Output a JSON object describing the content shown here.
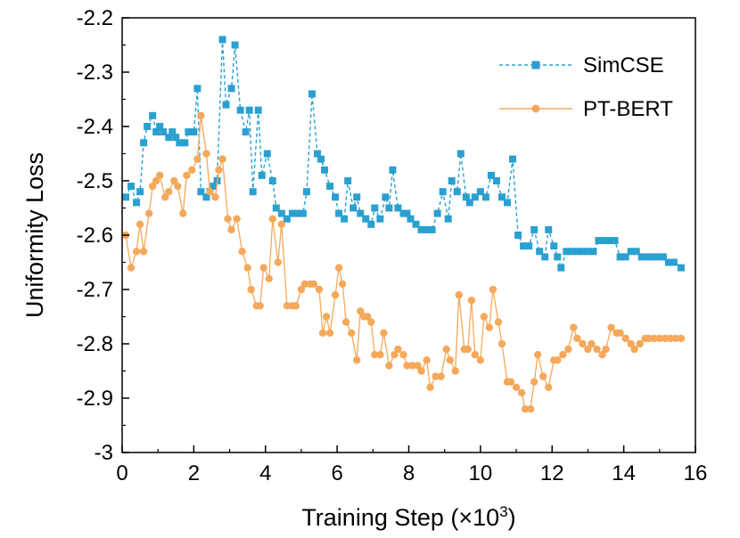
{
  "chart_data": {
    "type": "line",
    "title": "",
    "xlabel": "Training Step (×10",
    "xlabel_sup": "3",
    "xlabel_close": ")",
    "ylabel": "Uniformity Loss",
    "xlim": [
      0,
      16
    ],
    "ylim": [
      -3.0,
      -2.2
    ],
    "xticks": [
      0,
      2,
      4,
      6,
      8,
      10,
      12,
      14,
      16
    ],
    "xtick_labels": [
      "0",
      "2",
      "4",
      "6",
      "8",
      "10",
      "12",
      "14",
      "16"
    ],
    "yticks": [
      -3.0,
      -2.9,
      -2.8,
      -2.7,
      -2.6,
      -2.5,
      -2.4,
      -2.3,
      -2.2
    ],
    "ytick_labels": [
      "-3",
      "-2.9",
      "-2.8",
      "-2.7",
      "-2.6",
      "-2.5",
      "-2.4",
      "-2.3",
      "-2.2"
    ],
    "grid": false,
    "legend_position": "top-right",
    "series": [
      {
        "name": "SimCSE",
        "color": "#2aa0d0",
        "marker": "square",
        "line_style": "dashed",
        "points": [
          [
            0.1,
            -2.53
          ],
          [
            0.25,
            -2.51
          ],
          [
            0.4,
            -2.54
          ],
          [
            0.5,
            -2.52
          ],
          [
            0.6,
            -2.43
          ],
          [
            0.7,
            -2.4
          ],
          [
            0.85,
            -2.38
          ],
          [
            0.95,
            -2.41
          ],
          [
            1.05,
            -2.4
          ],
          [
            1.15,
            -2.41
          ],
          [
            1.3,
            -2.42
          ],
          [
            1.4,
            -2.41
          ],
          [
            1.5,
            -2.42
          ],
          [
            1.6,
            -2.43
          ],
          [
            1.75,
            -2.43
          ],
          [
            1.85,
            -2.41
          ],
          [
            2.0,
            -2.41
          ],
          [
            2.1,
            -2.33
          ],
          [
            2.2,
            -2.52
          ],
          [
            2.35,
            -2.53
          ],
          [
            2.45,
            -2.52
          ],
          [
            2.55,
            -2.51
          ],
          [
            2.65,
            -2.5
          ],
          [
            2.8,
            -2.24
          ],
          [
            2.9,
            -2.36
          ],
          [
            3.05,
            -2.33
          ],
          [
            3.15,
            -2.25
          ],
          [
            3.3,
            -2.37
          ],
          [
            3.45,
            -2.41
          ],
          [
            3.55,
            -2.37
          ],
          [
            3.65,
            -2.52
          ],
          [
            3.8,
            -2.37
          ],
          [
            3.9,
            -2.49
          ],
          [
            4.05,
            -2.45
          ],
          [
            4.2,
            -2.5
          ],
          [
            4.3,
            -2.55
          ],
          [
            4.45,
            -2.56
          ],
          [
            4.6,
            -2.57
          ],
          [
            4.75,
            -2.56
          ],
          [
            4.9,
            -2.56
          ],
          [
            5.05,
            -2.56
          ],
          [
            5.15,
            -2.52
          ],
          [
            5.3,
            -2.34
          ],
          [
            5.45,
            -2.45
          ],
          [
            5.55,
            -2.46
          ],
          [
            5.65,
            -2.48
          ],
          [
            5.8,
            -2.51
          ],
          [
            5.95,
            -2.53
          ],
          [
            6.05,
            -2.56
          ],
          [
            6.2,
            -2.57
          ],
          [
            6.3,
            -2.5
          ],
          [
            6.45,
            -2.55
          ],
          [
            6.55,
            -2.53
          ],
          [
            6.65,
            -2.56
          ],
          [
            6.8,
            -2.57
          ],
          [
            6.95,
            -2.58
          ],
          [
            7.05,
            -2.55
          ],
          [
            7.2,
            -2.57
          ],
          [
            7.35,
            -2.53
          ],
          [
            7.45,
            -2.55
          ],
          [
            7.55,
            -2.48
          ],
          [
            7.7,
            -2.55
          ],
          [
            7.85,
            -2.56
          ],
          [
            7.95,
            -2.56
          ],
          [
            8.05,
            -2.57
          ],
          [
            8.2,
            -2.58
          ],
          [
            8.35,
            -2.59
          ],
          [
            8.5,
            -2.59
          ],
          [
            8.65,
            -2.59
          ],
          [
            8.8,
            -2.56
          ],
          [
            8.95,
            -2.52
          ],
          [
            9.1,
            -2.57
          ],
          [
            9.2,
            -2.5
          ],
          [
            9.35,
            -2.52
          ],
          [
            9.45,
            -2.45
          ],
          [
            9.6,
            -2.53
          ],
          [
            9.7,
            -2.54
          ],
          [
            9.85,
            -2.53
          ],
          [
            10.0,
            -2.52
          ],
          [
            10.15,
            -2.53
          ],
          [
            10.3,
            -2.49
          ],
          [
            10.45,
            -2.5
          ],
          [
            10.6,
            -2.53
          ],
          [
            10.75,
            -2.54
          ],
          [
            10.9,
            -2.46
          ],
          [
            11.05,
            -2.6
          ],
          [
            11.2,
            -2.62
          ],
          [
            11.35,
            -2.62
          ],
          [
            11.5,
            -2.59
          ],
          [
            11.65,
            -2.63
          ],
          [
            11.8,
            -2.64
          ],
          [
            11.9,
            -2.59
          ],
          [
            12.05,
            -2.62
          ],
          [
            12.15,
            -2.64
          ],
          [
            12.25,
            -2.66
          ],
          [
            12.4,
            -2.63
          ],
          [
            12.55,
            -2.63
          ],
          [
            12.7,
            -2.63
          ],
          [
            12.85,
            -2.63
          ],
          [
            13.0,
            -2.63
          ],
          [
            13.15,
            -2.63
          ],
          [
            13.3,
            -2.61
          ],
          [
            13.45,
            -2.61
          ],
          [
            13.6,
            -2.61
          ],
          [
            13.75,
            -2.61
          ],
          [
            13.9,
            -2.64
          ],
          [
            14.05,
            -2.64
          ],
          [
            14.2,
            -2.63
          ],
          [
            14.35,
            -2.63
          ],
          [
            14.5,
            -2.64
          ],
          [
            14.65,
            -2.64
          ],
          [
            14.8,
            -2.64
          ],
          [
            14.95,
            -2.64
          ],
          [
            15.1,
            -2.64
          ],
          [
            15.25,
            -2.65
          ],
          [
            15.4,
            -2.65
          ],
          [
            15.6,
            -2.66
          ]
        ]
      },
      {
        "name": "PT-BERT",
        "color": "#f5a85a",
        "marker": "circle",
        "line_style": "solid",
        "points": [
          [
            0.1,
            -2.6
          ],
          [
            0.25,
            -2.66
          ],
          [
            0.4,
            -2.63
          ],
          [
            0.5,
            -2.58
          ],
          [
            0.6,
            -2.63
          ],
          [
            0.75,
            -2.56
          ],
          [
            0.85,
            -2.51
          ],
          [
            0.95,
            -2.5
          ],
          [
            1.05,
            -2.49
          ],
          [
            1.2,
            -2.53
          ],
          [
            1.3,
            -2.52
          ],
          [
            1.45,
            -2.5
          ],
          [
            1.55,
            -2.51
          ],
          [
            1.7,
            -2.56
          ],
          [
            1.8,
            -2.49
          ],
          [
            1.95,
            -2.48
          ],
          [
            2.1,
            -2.46
          ],
          [
            2.2,
            -2.38
          ],
          [
            2.35,
            -2.45
          ],
          [
            2.45,
            -2.52
          ],
          [
            2.6,
            -2.53
          ],
          [
            2.7,
            -2.48
          ],
          [
            2.8,
            -2.46
          ],
          [
            2.95,
            -2.57
          ],
          [
            3.05,
            -2.59
          ],
          [
            3.2,
            -2.57
          ],
          [
            3.35,
            -2.63
          ],
          [
            3.5,
            -2.66
          ],
          [
            3.6,
            -2.7
          ],
          [
            3.75,
            -2.73
          ],
          [
            3.85,
            -2.73
          ],
          [
            3.95,
            -2.66
          ],
          [
            4.1,
            -2.68
          ],
          [
            4.2,
            -2.57
          ],
          [
            4.35,
            -2.65
          ],
          [
            4.45,
            -2.58
          ],
          [
            4.6,
            -2.73
          ],
          [
            4.75,
            -2.73
          ],
          [
            4.85,
            -2.73
          ],
          [
            5.0,
            -2.7
          ],
          [
            5.1,
            -2.69
          ],
          [
            5.25,
            -2.69
          ],
          [
            5.35,
            -2.69
          ],
          [
            5.5,
            -2.7
          ],
          [
            5.6,
            -2.78
          ],
          [
            5.7,
            -2.75
          ],
          [
            5.8,
            -2.78
          ],
          [
            5.95,
            -2.71
          ],
          [
            6.05,
            -2.66
          ],
          [
            6.15,
            -2.69
          ],
          [
            6.25,
            -2.76
          ],
          [
            6.4,
            -2.78
          ],
          [
            6.55,
            -2.83
          ],
          [
            6.65,
            -2.74
          ],
          [
            6.75,
            -2.75
          ],
          [
            6.85,
            -2.75
          ],
          [
            6.95,
            -2.76
          ],
          [
            7.05,
            -2.82
          ],
          [
            7.2,
            -2.82
          ],
          [
            7.3,
            -2.78
          ],
          [
            7.45,
            -2.84
          ],
          [
            7.6,
            -2.82
          ],
          [
            7.7,
            -2.81
          ],
          [
            7.85,
            -2.82
          ],
          [
            7.95,
            -2.84
          ],
          [
            8.1,
            -2.84
          ],
          [
            8.25,
            -2.84
          ],
          [
            8.35,
            -2.85
          ],
          [
            8.5,
            -2.83
          ],
          [
            8.6,
            -2.88
          ],
          [
            8.75,
            -2.86
          ],
          [
            8.9,
            -2.86
          ],
          [
            9.05,
            -2.81
          ],
          [
            9.15,
            -2.83
          ],
          [
            9.3,
            -2.85
          ],
          [
            9.4,
            -2.71
          ],
          [
            9.55,
            -2.81
          ],
          [
            9.65,
            -2.81
          ],
          [
            9.75,
            -2.72
          ],
          [
            9.85,
            -2.82
          ],
          [
            10.0,
            -2.83
          ],
          [
            10.1,
            -2.75
          ],
          [
            10.25,
            -2.77
          ],
          [
            10.35,
            -2.7
          ],
          [
            10.5,
            -2.76
          ],
          [
            10.6,
            -2.8
          ],
          [
            10.75,
            -2.87
          ],
          [
            10.85,
            -2.87
          ],
          [
            11.0,
            -2.88
          ],
          [
            11.15,
            -2.89
          ],
          [
            11.25,
            -2.92
          ],
          [
            11.4,
            -2.92
          ],
          [
            11.5,
            -2.87
          ],
          [
            11.6,
            -2.82
          ],
          [
            11.75,
            -2.86
          ],
          [
            11.9,
            -2.88
          ],
          [
            12.05,
            -2.83
          ],
          [
            12.15,
            -2.83
          ],
          [
            12.3,
            -2.82
          ],
          [
            12.45,
            -2.81
          ],
          [
            12.6,
            -2.77
          ],
          [
            12.7,
            -2.79
          ],
          [
            12.85,
            -2.8
          ],
          [
            13.0,
            -2.81
          ],
          [
            13.1,
            -2.8
          ],
          [
            13.25,
            -2.81
          ],
          [
            13.4,
            -2.82
          ],
          [
            13.5,
            -2.81
          ],
          [
            13.65,
            -2.77
          ],
          [
            13.8,
            -2.78
          ],
          [
            13.9,
            -2.78
          ],
          [
            14.05,
            -2.79
          ],
          [
            14.2,
            -2.8
          ],
          [
            14.3,
            -2.81
          ],
          [
            14.45,
            -2.8
          ],
          [
            14.6,
            -2.79
          ],
          [
            14.7,
            -2.79
          ],
          [
            14.85,
            -2.79
          ],
          [
            15.0,
            -2.79
          ],
          [
            15.15,
            -2.79
          ],
          [
            15.3,
            -2.79
          ],
          [
            15.45,
            -2.79
          ],
          [
            15.6,
            -2.79
          ]
        ]
      }
    ]
  }
}
